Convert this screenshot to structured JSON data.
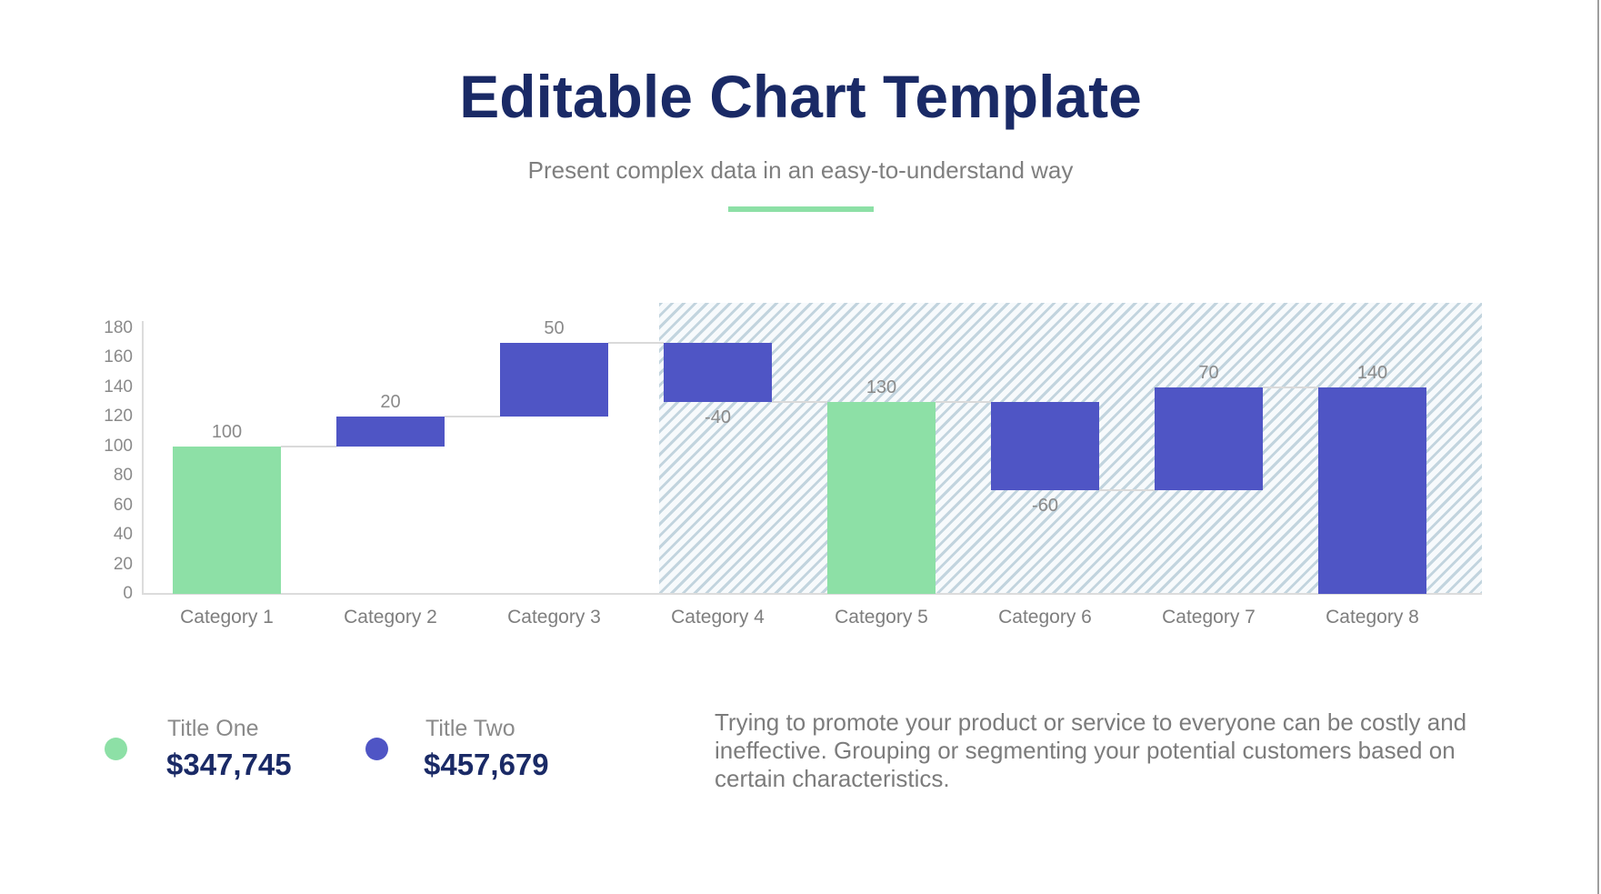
{
  "page": {
    "title": "Editable Chart Template",
    "subtitle": "Present complex data in an easy-to-understand way"
  },
  "colors": {
    "navy": "#1A2A66",
    "green": "#8DE0A6",
    "blue": "#4F55C5",
    "text_gray": "#7F7F7F",
    "label_gray": "#8A8A8A",
    "axis_line": "#DCDCDC",
    "hatch_stripe": "#C2D4DE",
    "hatch_bg": "#F7FAFC",
    "page_edge": "#9E9E9E"
  },
  "chart_data": {
    "type": "bar",
    "subtype": "waterfall",
    "title": "",
    "xlabel": "",
    "ylabel": "",
    "ylim": [
      0,
      180
    ],
    "y_ticks": [
      0,
      20,
      40,
      60,
      80,
      100,
      120,
      140,
      160,
      180
    ],
    "grid": false,
    "legend_position": "bottom-left",
    "categories": [
      "Category 1",
      "Category 2",
      "Category 3",
      "Category 4",
      "Category 5",
      "Category 6",
      "Category 7",
      "Category 8"
    ],
    "points": [
      {
        "category": "Category 1",
        "value": 100,
        "label": "100",
        "low": 0,
        "high": 100,
        "color": "green",
        "label_position": "above",
        "connect_level": 100
      },
      {
        "category": "Category 2",
        "value": 20,
        "label": "20",
        "low": 100,
        "high": 120,
        "color": "blue",
        "label_position": "above",
        "connect_level": 120
      },
      {
        "category": "Category 3",
        "value": 50,
        "label": "50",
        "low": 120,
        "high": 170,
        "color": "blue",
        "label_position": "above",
        "connect_level": 170
      },
      {
        "category": "Category 4",
        "value": -40,
        "label": "-40",
        "low": 130,
        "high": 170,
        "color": "blue",
        "label_position": "below",
        "connect_level": 130
      },
      {
        "category": "Category 5",
        "value": 130,
        "label": "130",
        "low": 0,
        "high": 130,
        "color": "green",
        "label_position": "above",
        "connect_level": 130
      },
      {
        "category": "Category 6",
        "value": -60,
        "label": "-60",
        "low": 70,
        "high": 130,
        "color": "blue",
        "label_position": "below",
        "connect_level": 70
      },
      {
        "category": "Category 7",
        "value": 70,
        "label": "70",
        "low": 70,
        "high": 140,
        "color": "blue",
        "label_position": "above",
        "connect_level": 140
      },
      {
        "category": "Category 8",
        "value": 140,
        "label": "140",
        "low": 0,
        "high": 140,
        "color": "blue",
        "label_position": "above",
        "connect_level": null
      }
    ],
    "highlight_region": {
      "start_category": "Category 4",
      "end_category": "Category 8",
      "style": "diagonal-hatch"
    }
  },
  "legend": {
    "items": [
      {
        "label": "Title One",
        "value": "$347,745",
        "color": "green"
      },
      {
        "label": "Title Two",
        "value": "$457,679",
        "color": "blue"
      }
    ]
  },
  "description": "Trying to promote your product or service to everyone can be costly and ineffective. Grouping or segmenting your potential customers based on certain characteristics."
}
